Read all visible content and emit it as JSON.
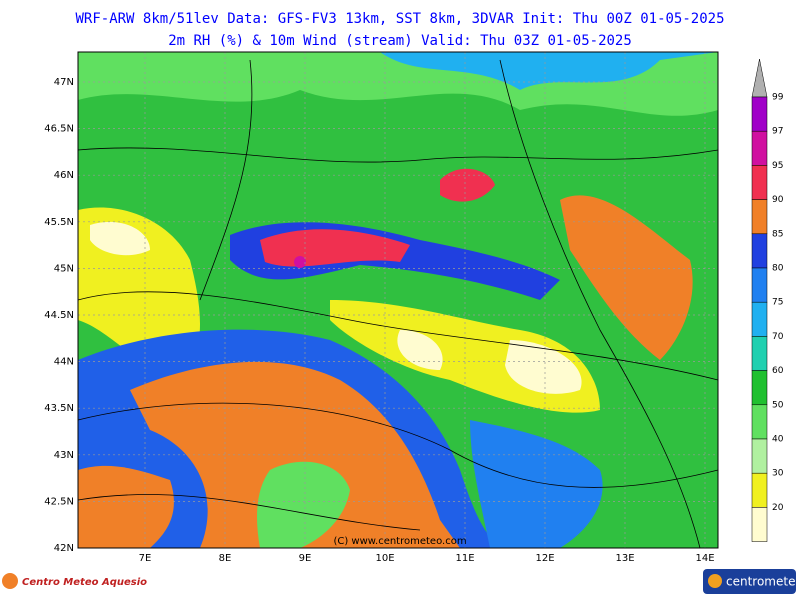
{
  "header": {
    "title": "WRF-ARW 8km/51lev  Data: GFS-FV3 13km, SST 8km, 3DVAR  Init: Thu 00Z 01-05-2025",
    "subtitle": "2m RH (%) & 10m Wind (stream)  Valid: Thu 03Z 01-05-2025"
  },
  "map": {
    "lat_labels": [
      "47N",
      "46.5N",
      "46N",
      "45.5N",
      "45N",
      "44.5N",
      "44N",
      "43.5N",
      "43N",
      "42.5N",
      "42N"
    ],
    "lon_labels": [
      "7E",
      "8E",
      "9E",
      "10E",
      "11E",
      "12E",
      "13E",
      "14E"
    ],
    "watermark": "(C) www.centrometeo.com"
  },
  "colorbar": {
    "labels": [
      "99",
      "97",
      "95",
      "90",
      "85",
      "80",
      "75",
      "70",
      "60",
      "50",
      "40",
      "30",
      "20"
    ],
    "colors": [
      "#a000c8",
      "#d010a0",
      "#f03050",
      "#f08028",
      "#2040e0",
      "#2080f0",
      "#20b0f0",
      "#20d0b0",
      "#20c030",
      "#60e060",
      "#b0f0a0",
      "#f0f020",
      "#fffcd0"
    ],
    "top_color": "#b0b0b0"
  },
  "footer": {
    "left_logo": "Centro Meteo Aquesio",
    "right_logo": "centrometeo"
  }
}
